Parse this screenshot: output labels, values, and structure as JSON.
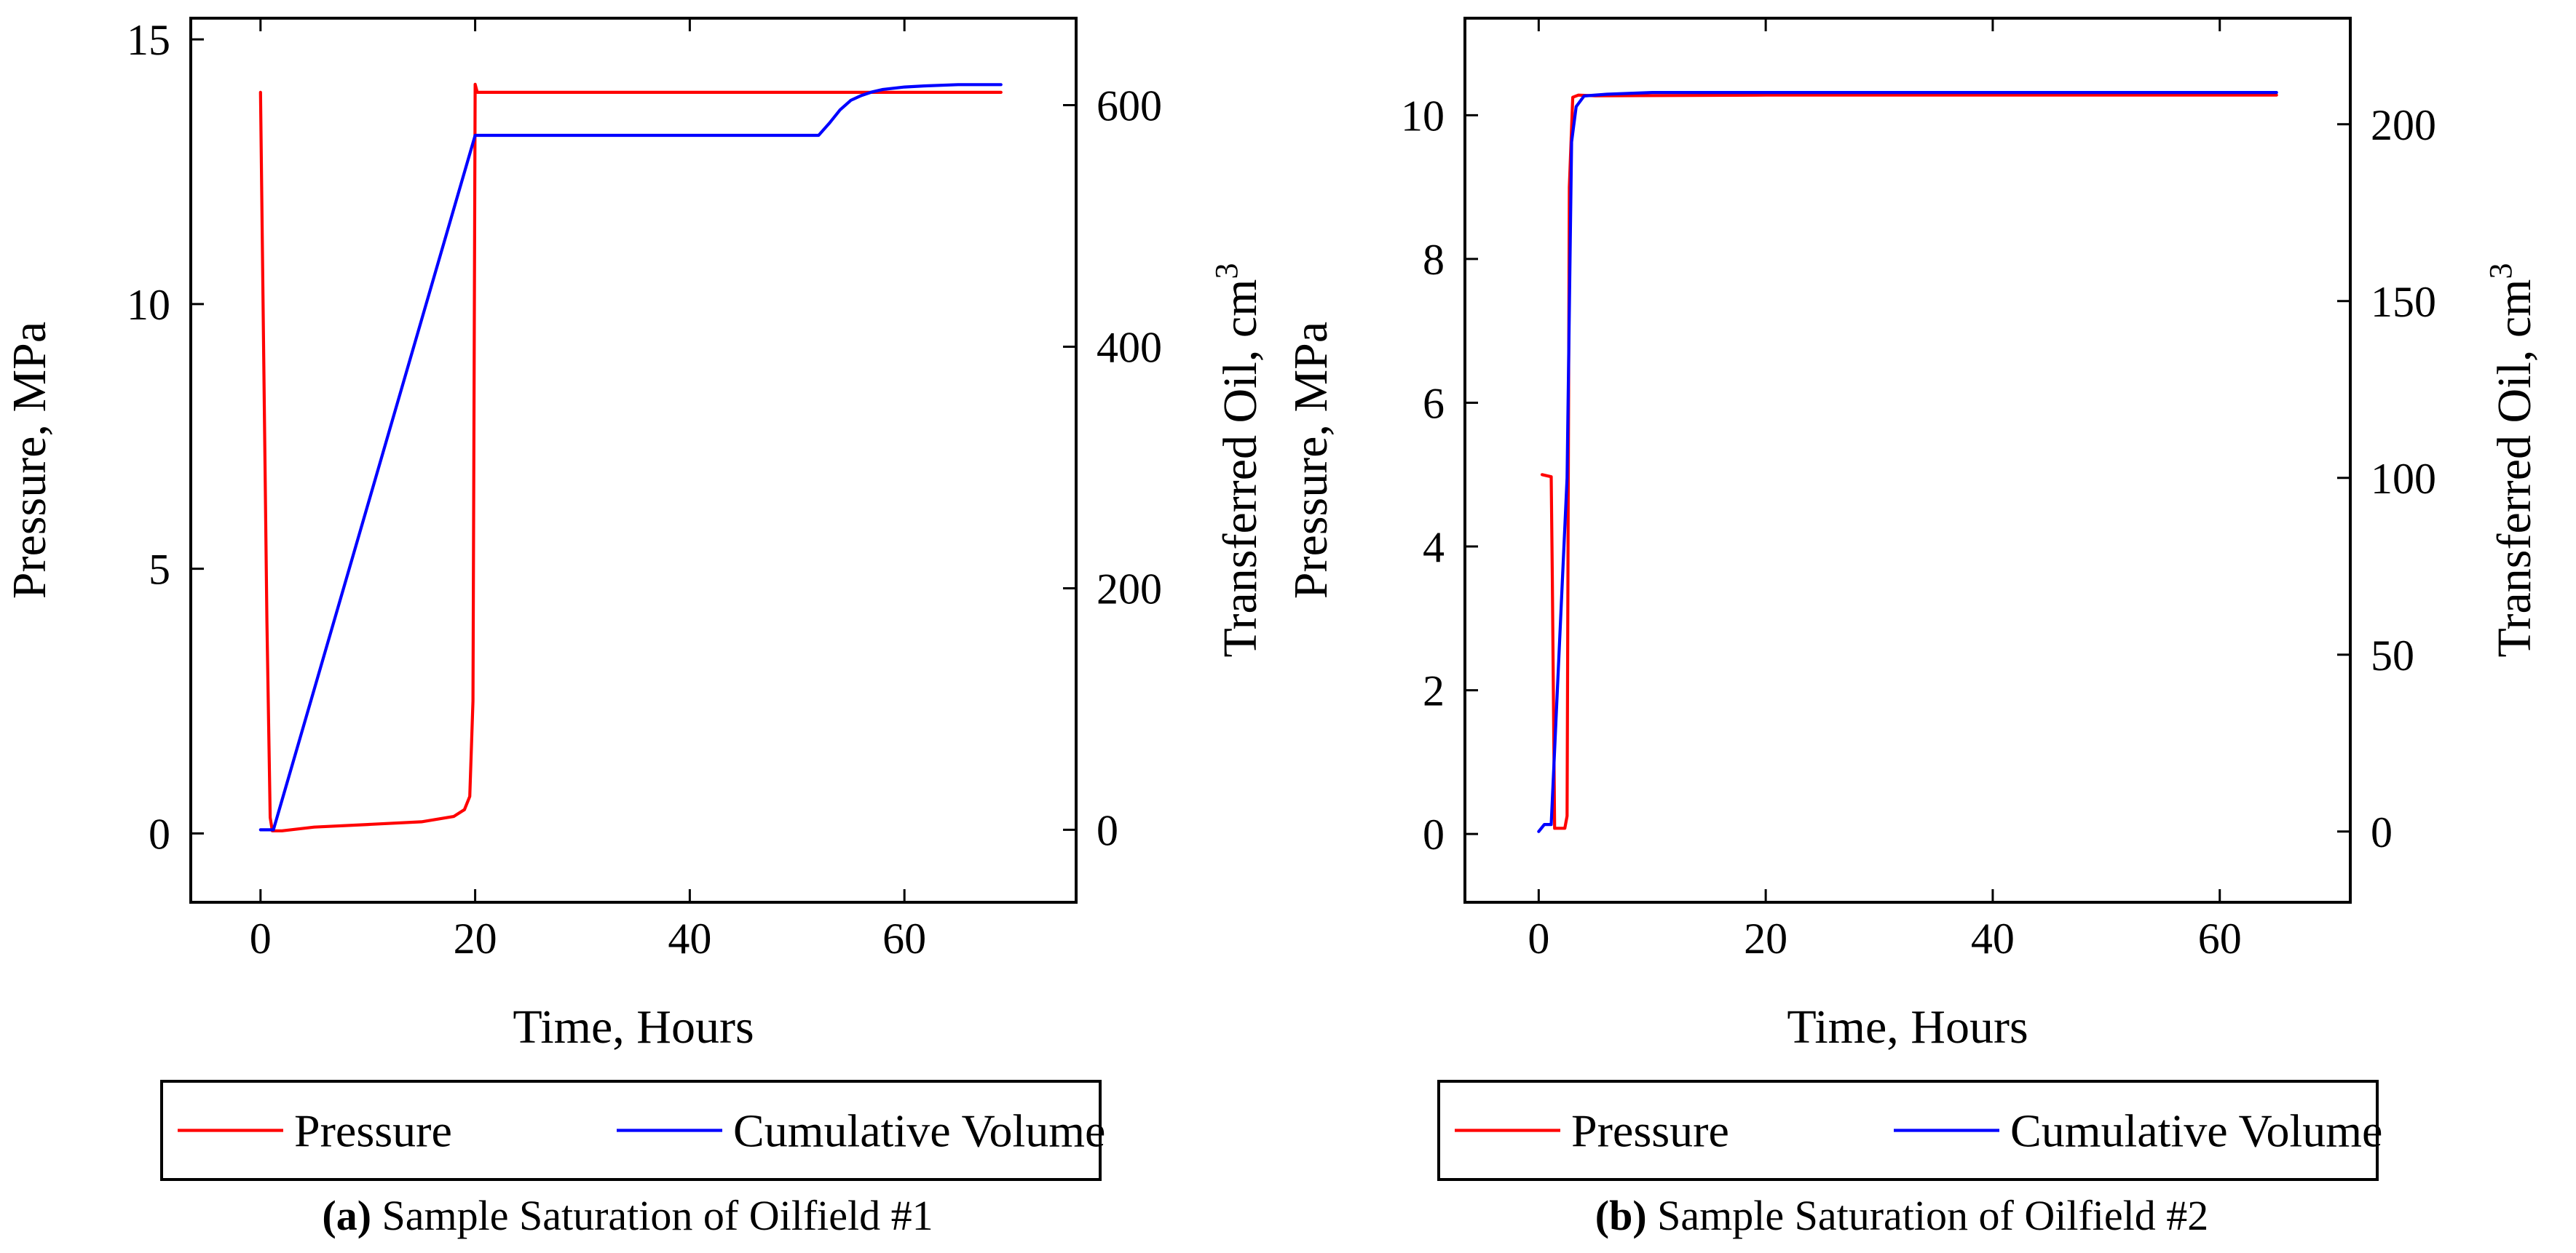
{
  "figure": {
    "panels": [
      "a",
      "b"
    ]
  },
  "chart_data": [
    {
      "type": "line",
      "panel": "a",
      "caption_label": "(a)",
      "caption_text": "Sample Saturation of Oilfield #1",
      "xlabel": "Time, Hours",
      "ylabel": "Pressure, MPa",
      "y2label": "Transferred Oil, cm",
      "y2label_sup": "3",
      "xlim": [
        -6.5,
        76
      ],
      "ylim": [
        -1.3,
        15.4
      ],
      "y2lim": [
        -60,
        672
      ],
      "xticks": [
        0,
        20,
        40,
        60
      ],
      "yticks": [
        0,
        5,
        10,
        15
      ],
      "y2ticks": [
        0,
        200,
        400,
        600
      ],
      "grid": false,
      "legend_position": "below",
      "series": [
        {
          "name": "Pressure",
          "axis": "left",
          "color": "#ff0000",
          "x": [
            0,
            0.6,
            0.9,
            1.1,
            2,
            5,
            10,
            15,
            18,
            19,
            19.5,
            19.8,
            20,
            20.2,
            20.5,
            30,
            50,
            69
          ],
          "y": [
            14.0,
            4.0,
            0.3,
            0.05,
            0.05,
            0.12,
            0.17,
            0.22,
            0.32,
            0.45,
            0.7,
            2.5,
            14.15,
            14.0,
            14.0,
            14.0,
            14.0,
            14.0
          ]
        },
        {
          "name": "Cumulative Volume",
          "axis": "right",
          "color": "#0000ff",
          "x": [
            0,
            1.2,
            20,
            30,
            40,
            52,
            53,
            54,
            55,
            56,
            57,
            58,
            60,
            62,
            65,
            69
          ],
          "y": [
            0,
            0,
            575,
            575,
            575,
            575,
            585,
            596,
            604,
            608,
            611,
            613,
            615,
            616,
            617,
            617
          ]
        }
      ]
    },
    {
      "type": "line",
      "panel": "b",
      "caption_label": "(b)",
      "caption_text": "Sample Saturation of Oilfield #2",
      "xlabel": "Time, Hours",
      "ylabel": "Pressure, MPa",
      "y2label": "Transferred Oil, cm",
      "y2label_sup": "3",
      "xlim": [
        -6.5,
        71.5
      ],
      "ylim": [
        -0.95,
        11.35
      ],
      "y2lim": [
        -20,
        230
      ],
      "xticks": [
        0,
        20,
        40,
        60
      ],
      "yticks": [
        0,
        2,
        4,
        6,
        8,
        10
      ],
      "y2ticks": [
        0,
        50,
        100,
        150,
        200
      ],
      "grid": false,
      "legend_position": "below",
      "series": [
        {
          "name": "Pressure",
          "axis": "left",
          "color": "#ff0000",
          "x": [
            0.3,
            1.1,
            1.2,
            1.4,
            2.3,
            2.5,
            2.7,
            3.0,
            3.5,
            5,
            20,
            40,
            65
          ],
          "y": [
            5.0,
            4.97,
            3.6,
            0.08,
            0.08,
            0.25,
            9.0,
            10.25,
            10.28,
            10.27,
            10.28,
            10.28,
            10.28
          ]
        },
        {
          "name": "Cumulative Volume",
          "axis": "right",
          "color": "#0000ff",
          "x": [
            0,
            0.5,
            1.1,
            2.5,
            2.9,
            3.3,
            4,
            6,
            10,
            20,
            40,
            65
          ],
          "y": [
            0,
            2,
            2,
            100,
            195,
            205,
            208,
            208.5,
            209,
            209,
            209,
            209
          ]
        }
      ]
    }
  ]
}
